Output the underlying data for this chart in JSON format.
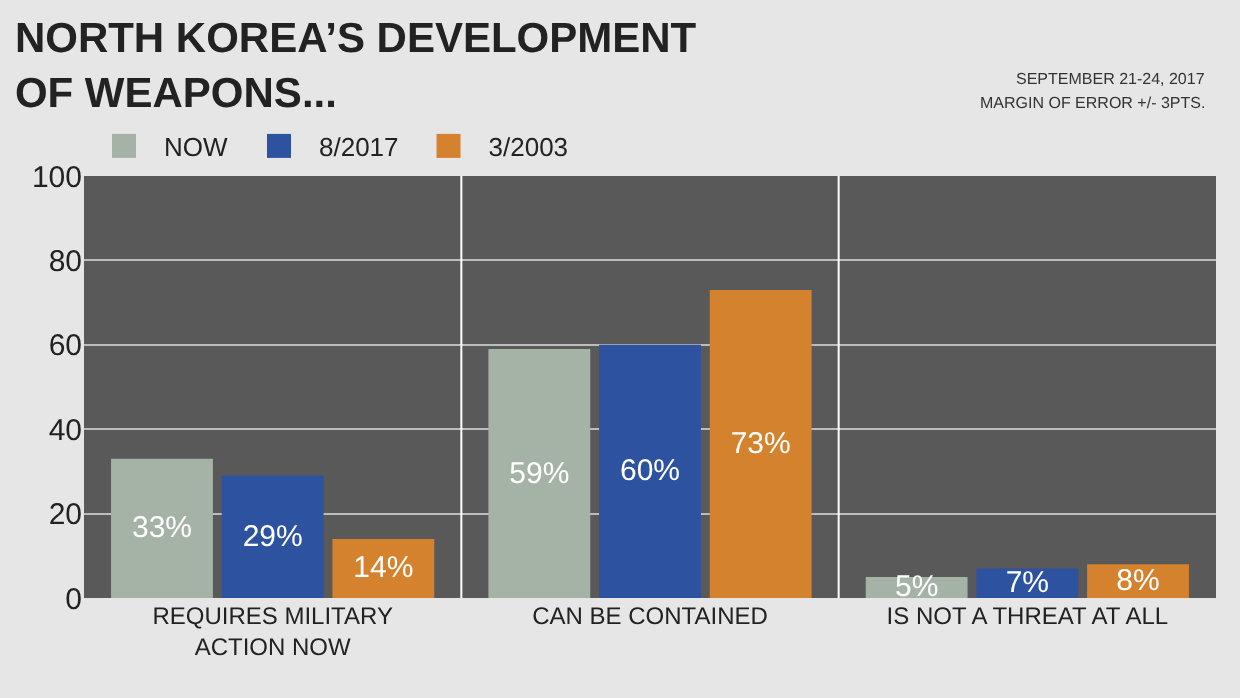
{
  "chart_data": {
    "type": "bar",
    "title": "NORTH KOREA’S DEVELOPMENT\nOF WEAPONS...",
    "annotations": [
      "SEPTEMBER 21-24, 2017",
      "MARGIN OF ERROR +/- 3PTS."
    ],
    "categories": [
      "REQUIRES MILITARY\nACTION NOW",
      "CAN BE CONTAINED",
      "IS NOT A THREAT AT ALL"
    ],
    "series": [
      {
        "name": "NOW",
        "color": "#a5b3a6",
        "values": [
          33,
          59,
          5
        ],
        "value_labels": [
          "33%",
          "59%",
          "5%"
        ]
      },
      {
        "name": "8/2017",
        "color": "#2c52a0",
        "values": [
          29,
          60,
          7
        ],
        "value_labels": [
          "29%",
          "60%",
          "7%"
        ]
      },
      {
        "name": "3/2003",
        "color": "#d4822e",
        "values": [
          14,
          73,
          8
        ],
        "value_labels": [
          "14%",
          "73%",
          "8%"
        ]
      }
    ],
    "ylim": [
      0,
      100
    ],
    "yticks": [
      0,
      20,
      40,
      60,
      80,
      100
    ],
    "grid": true,
    "legend": "top left"
  }
}
